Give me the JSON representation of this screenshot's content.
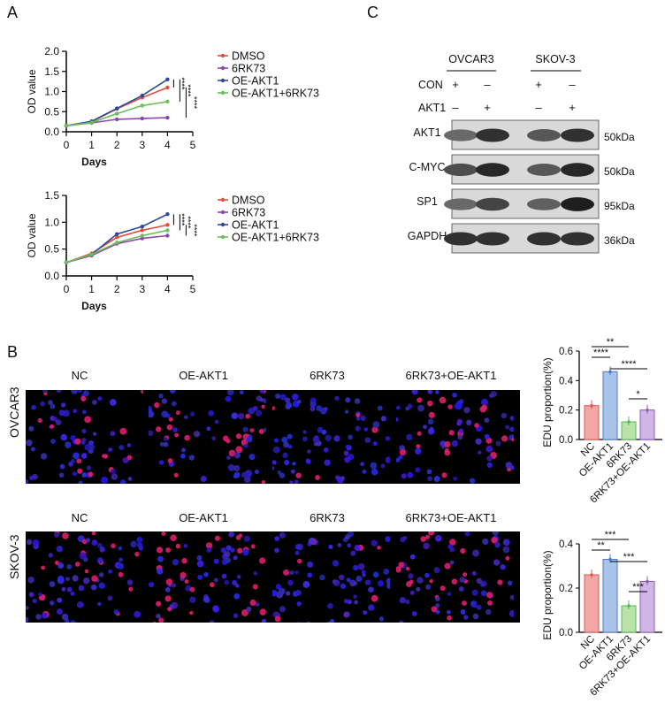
{
  "panels": {
    "a": "A",
    "b": "B",
    "c": "C"
  },
  "growth_legend": [
    "DMSO",
    "6RK73",
    "OE-AKT1",
    "OE-AKT1+6RK73"
  ],
  "growth_sig": [
    "****",
    "****",
    "****"
  ],
  "chart_data": [
    {
      "type": "line",
      "panel": "A-top",
      "xlabel": "Days",
      "ylabel": "OD value",
      "x": [
        0,
        1,
        2,
        3,
        4
      ],
      "xlim": [
        0,
        5
      ],
      "ylim": [
        0,
        2.0
      ],
      "xticks": [
        "0",
        "1",
        "2",
        "3",
        "4",
        "5"
      ],
      "yticks": [
        "0.0",
        "0.5",
        "1.0",
        "1.5",
        "2.0"
      ],
      "series": [
        {
          "name": "DMSO",
          "color": "#e74c3c",
          "values": [
            0.15,
            0.25,
            0.57,
            0.85,
            1.1
          ]
        },
        {
          "name": "6RK73",
          "color": "#8e44ad",
          "values": [
            0.15,
            0.22,
            0.31,
            0.33,
            0.35
          ]
        },
        {
          "name": "OE-AKT1",
          "color": "#2c4a9a",
          "values": [
            0.15,
            0.26,
            0.58,
            0.9,
            1.3
          ]
        },
        {
          "name": "OE-AKT1+6RK73",
          "color": "#6abf59",
          "values": [
            0.15,
            0.23,
            0.45,
            0.65,
            0.75
          ]
        }
      ]
    },
    {
      "type": "line",
      "panel": "A-bottom",
      "xlabel": "Days",
      "ylabel": "OD value",
      "x": [
        0,
        1,
        2,
        3,
        4
      ],
      "xlim": [
        0,
        5
      ],
      "ylim": [
        0,
        1.5
      ],
      "xticks": [
        "0",
        "1",
        "2",
        "3",
        "4",
        "5"
      ],
      "yticks": [
        "0.0",
        "0.5",
        "1.0",
        "1.5"
      ],
      "series": [
        {
          "name": "DMSO",
          "color": "#e74c3c",
          "values": [
            0.25,
            0.42,
            0.72,
            0.85,
            0.95
          ]
        },
        {
          "name": "6RK73",
          "color": "#8e44ad",
          "values": [
            0.25,
            0.38,
            0.6,
            0.7,
            0.75
          ]
        },
        {
          "name": "OE-AKT1",
          "color": "#2c4a9a",
          "values": [
            0.25,
            0.4,
            0.78,
            0.92,
            1.15
          ]
        },
        {
          "name": "OE-AKT1+6RK73",
          "color": "#6abf59",
          "values": [
            0.25,
            0.4,
            0.62,
            0.75,
            0.85
          ]
        }
      ]
    },
    {
      "type": "bar",
      "panel": "B-top",
      "ylabel": "EDU proportion(%)",
      "categories": [
        "NC",
        "OE-AKT1",
        "6RK73",
        "6RK73+OE-AKT1"
      ],
      "values": [
        0.23,
        0.46,
        0.12,
        0.2
      ],
      "colors": [
        "#f3a6a6",
        "#a9c4e8",
        "#b6e3a8",
        "#cfb6e6"
      ],
      "edge_colors": [
        "#e05555",
        "#4a7cc4",
        "#5cb85c",
        "#8e5ac0"
      ],
      "ylim": [
        0,
        0.6
      ],
      "yticks": [
        "0.0",
        "0.2",
        "0.4",
        "0.6"
      ],
      "sig": [
        {
          "label": "**",
          "from": 0,
          "to": 2
        },
        {
          "label": "****",
          "from": 0,
          "to": 1
        },
        {
          "label": "****",
          "from": 1,
          "to": 3
        },
        {
          "label": "*",
          "from": 2,
          "to": 3
        }
      ]
    },
    {
      "type": "bar",
      "panel": "B-bottom",
      "ylabel": "EDU proportion(%)",
      "categories": [
        "NC",
        "OE-AKT1",
        "6RK73",
        "6RK73+OE-AKT1"
      ],
      "values": [
        0.26,
        0.33,
        0.12,
        0.23
      ],
      "colors": [
        "#f3a6a6",
        "#a9c4e8",
        "#b6e3a8",
        "#cfb6e6"
      ],
      "edge_colors": [
        "#e05555",
        "#4a7cc4",
        "#5cb85c",
        "#8e5ac0"
      ],
      "ylim": [
        0,
        0.4
      ],
      "yticks": [
        "0.0",
        "0.2",
        "0.4"
      ],
      "sig": [
        {
          "label": "***",
          "from": 0,
          "to": 2
        },
        {
          "label": "**",
          "from": 0,
          "to": 1
        },
        {
          "label": "***",
          "from": 1,
          "to": 3
        },
        {
          "label": "***",
          "from": 2,
          "to": 3
        }
      ]
    }
  ],
  "micro": {
    "columns": [
      "NC",
      "OE-AKT1",
      "6RK73",
      "6RK73+OE-AKT1"
    ],
    "rows": [
      "OVCAR3",
      "SKOV-3"
    ],
    "red_density": [
      [
        0.25,
        0.7,
        0.1,
        0.45
      ],
      [
        0.6,
        0.8,
        0.15,
        0.45
      ]
    ]
  },
  "blot": {
    "cell_lines": [
      "OVCAR3",
      "SKOV-3"
    ],
    "conditions": [
      {
        "label": "CON",
        "marks": [
          "+",
          "–",
          "+",
          "–"
        ]
      },
      {
        "label": "AKT1",
        "marks": [
          "–",
          "+",
          "–",
          "+"
        ]
      }
    ],
    "bands": [
      {
        "name": "AKT1",
        "size": "50kDa",
        "intensity": [
          0.55,
          0.85,
          0.65,
          0.85
        ]
      },
      {
        "name": "C-MYC",
        "size": "50kDa",
        "intensity": [
          0.7,
          0.9,
          0.65,
          0.9
        ]
      },
      {
        "name": "SP1",
        "size": "95kDa",
        "intensity": [
          0.55,
          0.75,
          0.6,
          0.95
        ]
      },
      {
        "name": "GAPDH",
        "size": "36kDa",
        "intensity": [
          0.85,
          0.85,
          0.85,
          0.85
        ]
      }
    ]
  }
}
